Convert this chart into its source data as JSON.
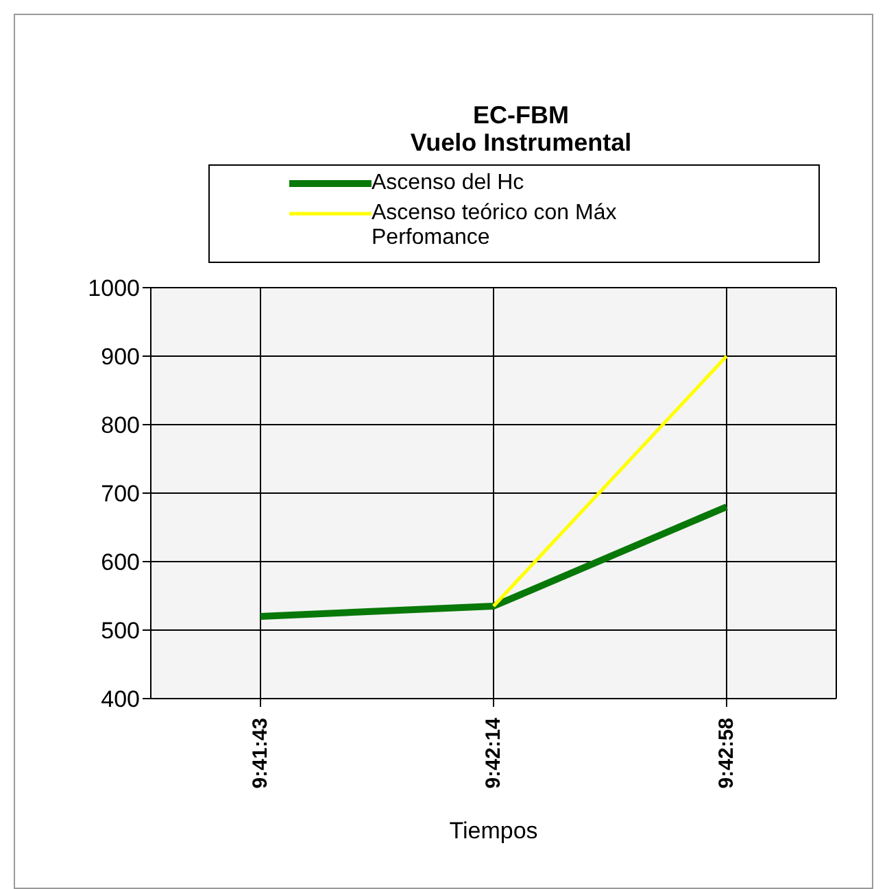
{
  "chart_data": {
    "type": "line",
    "title": "EC-FBM\nVuelo Instrumental",
    "xlabel": "Tiempos",
    "categories": [
      "9:41:43",
      "9:42:14",
      "9:42:58"
    ],
    "series": [
      {
        "name": "Ascenso del Hc",
        "color": "#087808",
        "values": [
          520,
          535,
          680
        ]
      },
      {
        "name": "Ascenso teórico con Máx Perfomance",
        "color": "#ffff00",
        "values": [
          null,
          535,
          900
        ]
      }
    ],
    "ylim": [
      400,
      1000
    ],
    "yticks": [
      400,
      500,
      600,
      700,
      800,
      900,
      1000
    ],
    "grid": true,
    "legend": "top",
    "marker": "none",
    "line_style": "solid"
  }
}
